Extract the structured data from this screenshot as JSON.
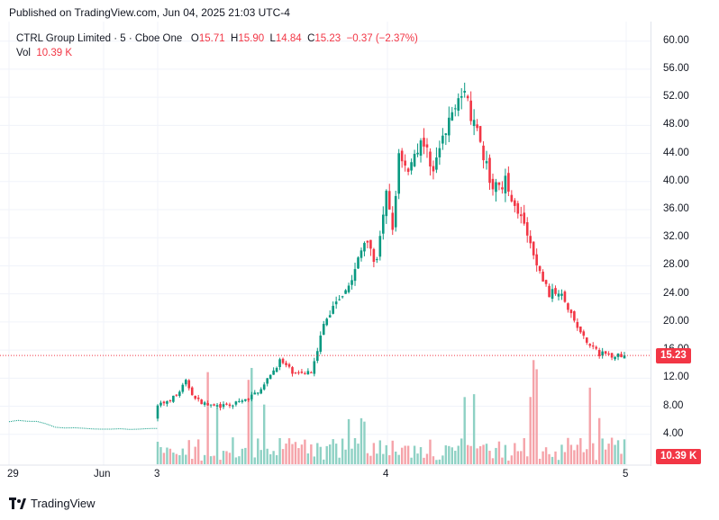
{
  "header": {
    "published": "Published on TradingView.com, Jun 04, 2025 21:03 UTC-4"
  },
  "legend": {
    "symbol": "CTRL Group Limited · 5 · Cboe One",
    "o_label": "O",
    "o": "15.71",
    "h_label": "H",
    "h": "15.90",
    "l_label": "L",
    "l": "14.84",
    "c_label": "C",
    "c": "15.23",
    "change": "−0.37 (−2.37%)",
    "vol_label": "Vol",
    "vol": "10.39 K"
  },
  "colors": {
    "up": "#089981",
    "down": "#f23645",
    "up_vol": "#8ed1c4",
    "down_vol": "#f5a3a9",
    "grid": "#f0f3fa"
  },
  "brand": {
    "name": "TradingView",
    "icon": "tradingview-logo-icon"
  },
  "chart_data": {
    "type": "candlestick",
    "y_ticks": [
      "60.00",
      "56.00",
      "52.00",
      "48.00",
      "44.00",
      "40.00",
      "36.00",
      "32.00",
      "28.00",
      "24.00",
      "20.00",
      "16.00",
      "12.00",
      "8.00",
      "4.00"
    ],
    "ylim": [
      0,
      61.5
    ],
    "x_ticks": [
      "29",
      "Jun",
      "3",
      "4",
      "5"
    ],
    "last_price": "15.23",
    "last_volume": "10.39 K",
    "anchors": [
      {
        "i": 0,
        "p": 5.9
      },
      {
        "i": 3,
        "p": 5.9
      },
      {
        "i": 5,
        "p": 5.0
      },
      {
        "i": 10,
        "p": 4.7
      },
      {
        "i": 16,
        "p": 4.8
      },
      {
        "i": 18,
        "p": 8.0
      },
      {
        "i": 24,
        "p": 9.5
      },
      {
        "i": 27,
        "p": 11.5
      },
      {
        "i": 30,
        "p": 9.0
      },
      {
        "i": 35,
        "p": 8.0
      },
      {
        "i": 40,
        "p": 8.0
      },
      {
        "i": 47,
        "p": 9.0
      },
      {
        "i": 52,
        "p": 11.0
      },
      {
        "i": 57,
        "p": 14.5
      },
      {
        "i": 62,
        "p": 12.5
      },
      {
        "i": 67,
        "p": 13.0
      },
      {
        "i": 71,
        "p": 19.5
      },
      {
        "i": 75,
        "p": 23.0
      },
      {
        "i": 80,
        "p": 26.0
      },
      {
        "i": 84,
        "p": 31.5
      },
      {
        "i": 88,
        "p": 28.5
      },
      {
        "i": 91,
        "p": 38.0
      },
      {
        "i": 93,
        "p": 33.0
      },
      {
        "i": 95,
        "p": 44.0
      },
      {
        "i": 98,
        "p": 42.0
      },
      {
        "i": 102,
        "p": 46.0
      },
      {
        "i": 106,
        "p": 42.0
      },
      {
        "i": 110,
        "p": 47.0
      },
      {
        "i": 114,
        "p": 53.0
      },
      {
        "i": 117,
        "p": 51.0
      },
      {
        "i": 121,
        "p": 45.0
      },
      {
        "i": 125,
        "p": 39.0
      },
      {
        "i": 129,
        "p": 40.0
      },
      {
        "i": 134,
        "p": 35.0
      },
      {
        "i": 139,
        "p": 28.0
      },
      {
        "i": 143,
        "p": 24.0
      },
      {
        "i": 147,
        "p": 24.5
      },
      {
        "i": 151,
        "p": 20.0
      },
      {
        "i": 155,
        "p": 17.0
      },
      {
        "i": 159,
        "p": 15.5
      },
      {
        "i": 163,
        "p": 15.3
      },
      {
        "i": 167,
        "p": 15.2
      }
    ]
  }
}
